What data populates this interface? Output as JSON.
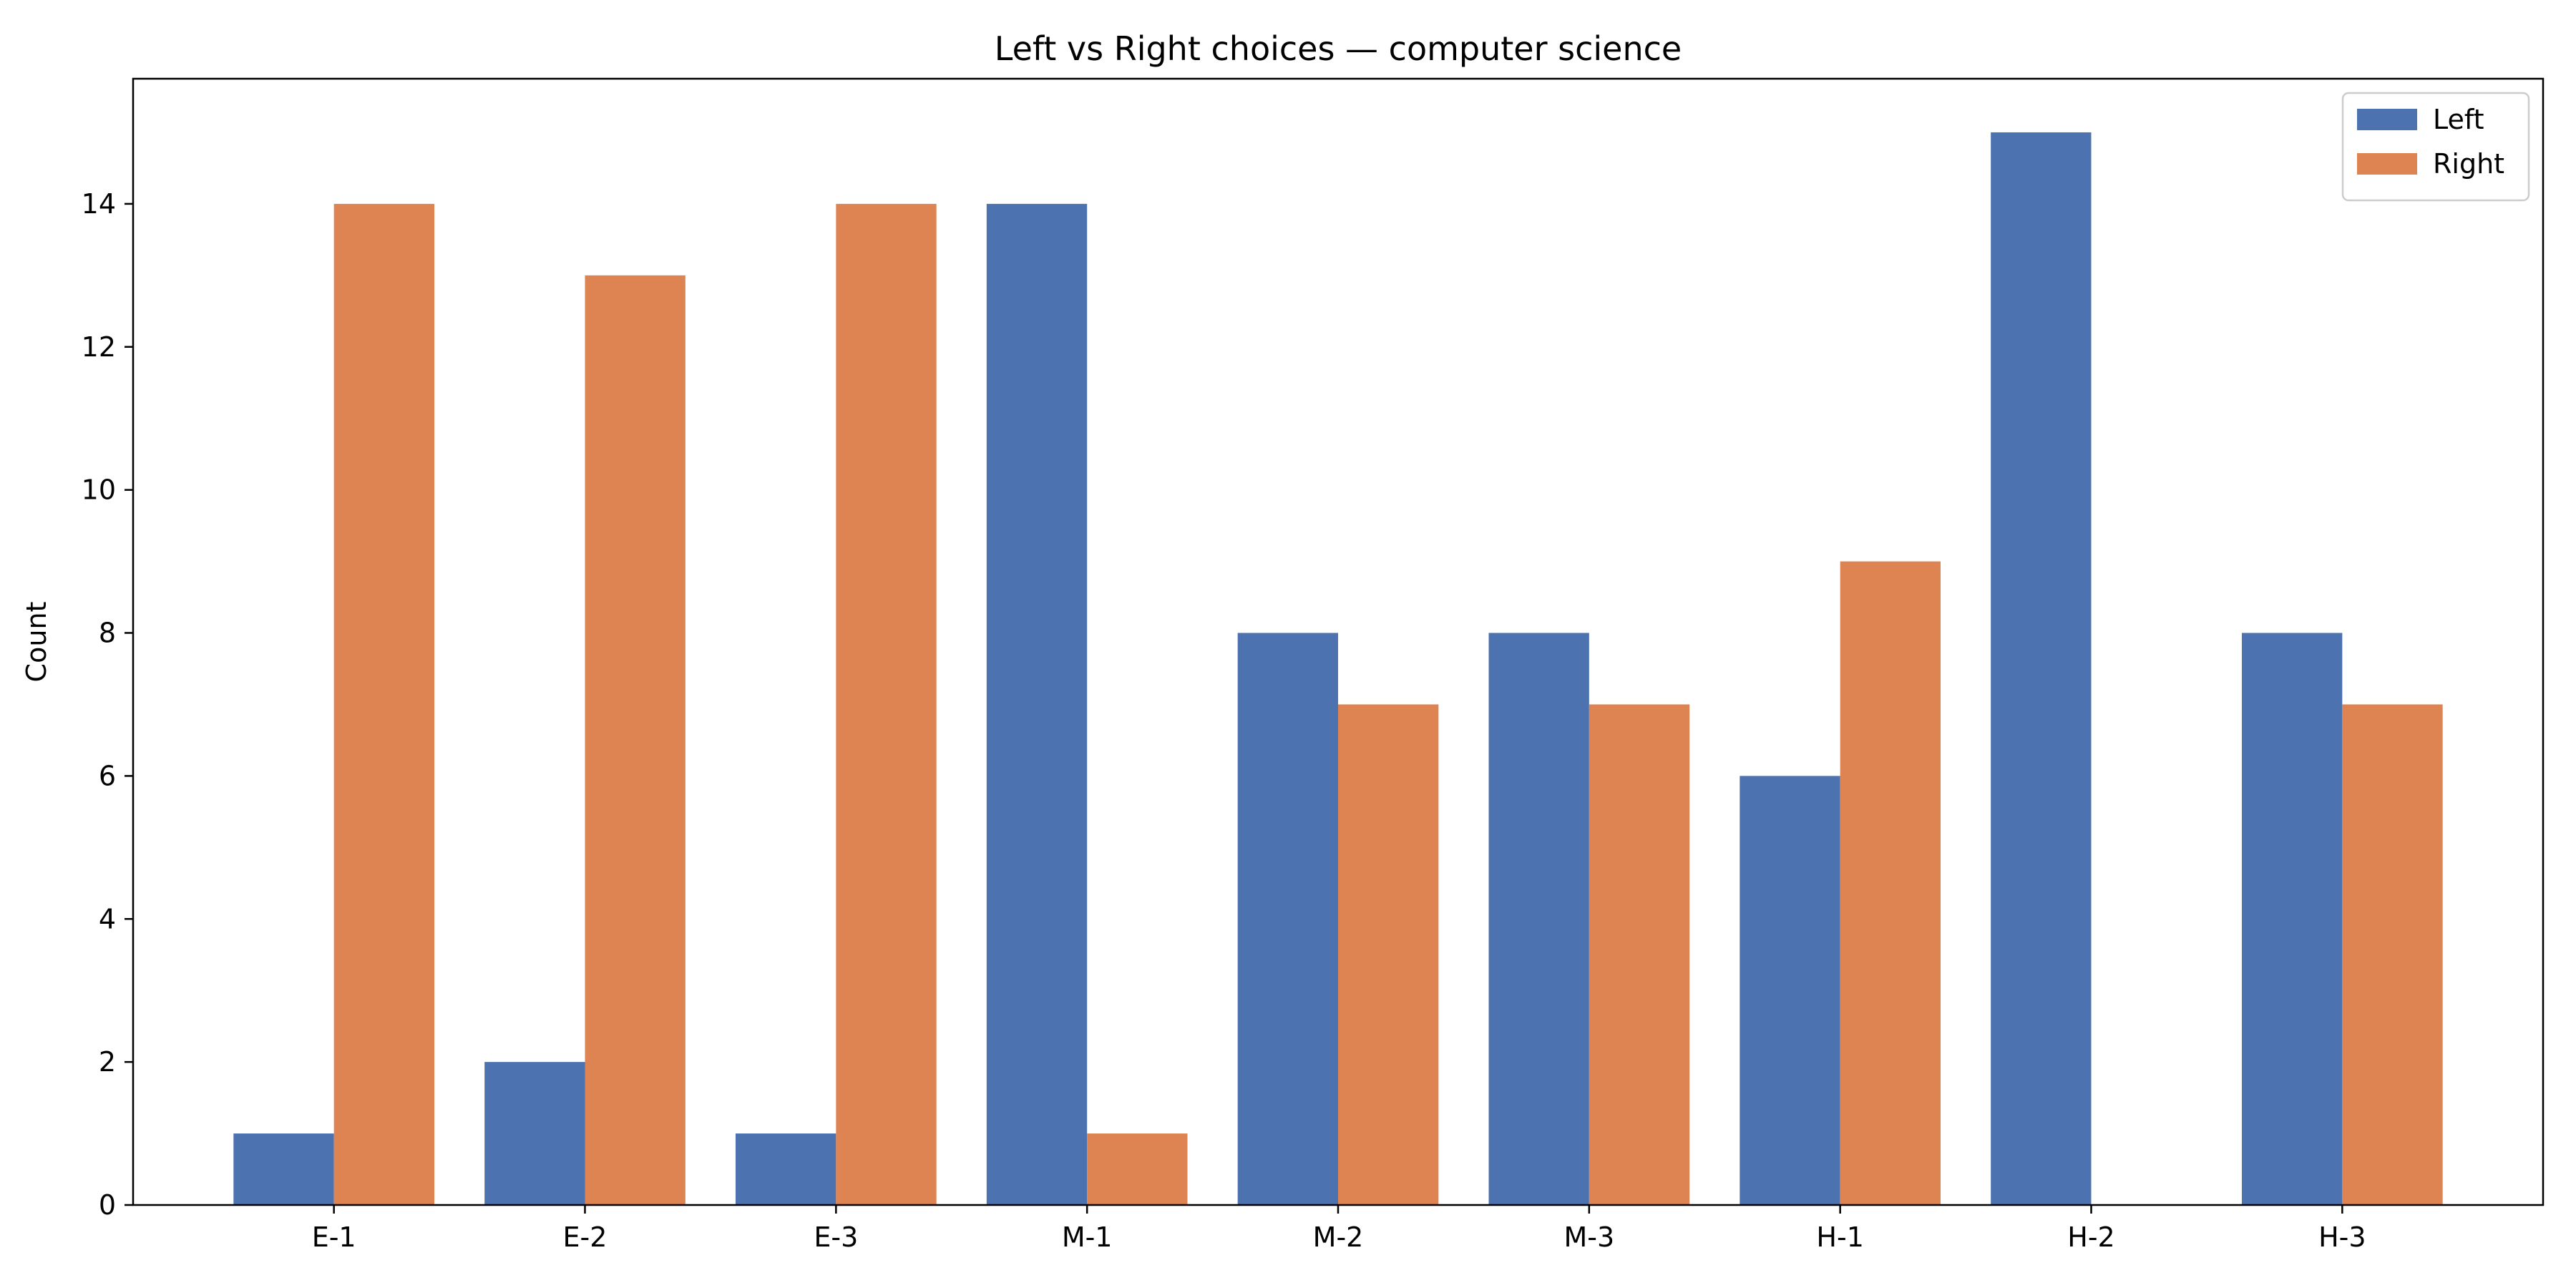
{
  "chart_data": {
    "type": "bar",
    "title": "Left vs Right choices — computer science",
    "xlabel": "",
    "ylabel": "Count",
    "categories": [
      "E-1",
      "E-2",
      "E-3",
      "M-1",
      "M-2",
      "M-3",
      "H-1",
      "H-2",
      "H-3"
    ],
    "series": [
      {
        "name": "Left",
        "color": "#4c72b0",
        "values": [
          1,
          2,
          1,
          14,
          8,
          8,
          6,
          15,
          8
        ]
      },
      {
        "name": "Right",
        "color": "#dd8452",
        "values": [
          14,
          13,
          14,
          1,
          7,
          7,
          9,
          0,
          7
        ]
      }
    ],
    "ylim": [
      0,
      15.75
    ],
    "yticks": [
      0,
      2,
      4,
      6,
      8,
      10,
      12,
      14
    ],
    "grid": false,
    "legend_position": "top-right"
  }
}
